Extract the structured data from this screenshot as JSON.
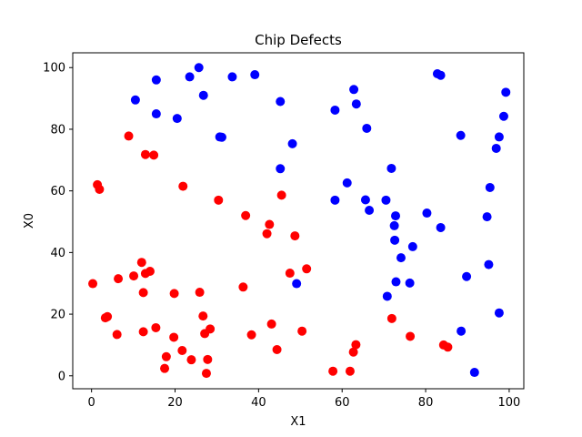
{
  "chart_data": {
    "type": "scatter",
    "title": "Chip Defects",
    "xlabel": "X1",
    "ylabel": "X0",
    "xlim": [
      -4.5,
      103.5
    ],
    "ylim": [
      -4.2,
      104.8
    ],
    "xticks": [
      0,
      20,
      40,
      60,
      80,
      100
    ],
    "yticks": [
      0,
      20,
      40,
      60,
      80,
      100
    ],
    "grid": false,
    "series": [
      {
        "color": "#0000ff",
        "points": [
          [
            10.5,
            89.5
          ],
          [
            15.5,
            96
          ],
          [
            15.5,
            85
          ],
          [
            20.5,
            83.5
          ],
          [
            23.5,
            97
          ],
          [
            25.7,
            100
          ],
          [
            26.8,
            91
          ],
          [
            30.7,
            77.5
          ],
          [
            31.2,
            77.4
          ],
          [
            33.7,
            97
          ],
          [
            39.1,
            97.7
          ],
          [
            45.2,
            89
          ],
          [
            48.1,
            75.3
          ],
          [
            45.2,
            67.2
          ],
          [
            49.1,
            29.9
          ],
          [
            58.3,
            86.2
          ],
          [
            58.3,
            57
          ],
          [
            61.2,
            62.6
          ],
          [
            62.8,
            92.9
          ],
          [
            63.4,
            88.2
          ],
          [
            65.6,
            57.1
          ],
          [
            65.9,
            80.3
          ],
          [
            66.5,
            53.7
          ],
          [
            70.5,
            57
          ],
          [
            71.8,
            67.3
          ],
          [
            72.5,
            48.7
          ],
          [
            72.6,
            44
          ],
          [
            72.8,
            51.9
          ],
          [
            72.9,
            30.5
          ],
          [
            74.1,
            38.3
          ],
          [
            76.2,
            30.1
          ],
          [
            76.9,
            41.9
          ],
          [
            70.8,
            25.8
          ],
          [
            80.3,
            52.8
          ],
          [
            82.8,
            98
          ],
          [
            83.6,
            97.5
          ],
          [
            83.6,
            48.1
          ],
          [
            88.4,
            78
          ],
          [
            88.5,
            14.5
          ],
          [
            89.8,
            32.2
          ],
          [
            91.7,
            1.1
          ],
          [
            94.7,
            51.6
          ],
          [
            95.1,
            36.1
          ],
          [
            95.4,
            61.1
          ],
          [
            96.9,
            73.8
          ],
          [
            97.6,
            77.5
          ],
          [
            97.6,
            20.4
          ],
          [
            98.7,
            84.2
          ],
          [
            99.2,
            92
          ]
        ]
      },
      {
        "color": "#ff0000",
        "points": [
          [
            0.3,
            29.9
          ],
          [
            1.4,
            62
          ],
          [
            1.9,
            60.5
          ],
          [
            3.3,
            18.8
          ],
          [
            3.8,
            19.2
          ],
          [
            6.1,
            13.4
          ],
          [
            6.4,
            31.5
          ],
          [
            8.9,
            77.8
          ],
          [
            10.1,
            32.4
          ],
          [
            12.0,
            36.8
          ],
          [
            12.4,
            27
          ],
          [
            12.4,
            14.3
          ],
          [
            12.9,
            71.8
          ],
          [
            12.9,
            33.2
          ],
          [
            14.0,
            33.9
          ],
          [
            14.9,
            71.6
          ],
          [
            15.4,
            15.6
          ],
          [
            17.5,
            2.4
          ],
          [
            17.9,
            6.2
          ],
          [
            19.7,
            12.5
          ],
          [
            19.8,
            26.7
          ],
          [
            21.7,
            8.2
          ],
          [
            21.9,
            61.5
          ],
          [
            23.9,
            5.2
          ],
          [
            25.9,
            27.1
          ],
          [
            26.7,
            19.4
          ],
          [
            27.1,
            13.7
          ],
          [
            27.5,
            0.8
          ],
          [
            27.8,
            5.3
          ],
          [
            28.4,
            15.2
          ],
          [
            30.4,
            57
          ],
          [
            36.3,
            28.8
          ],
          [
            36.9,
            52
          ],
          [
            38.3,
            13.3
          ],
          [
            42.0,
            46.1
          ],
          [
            42.6,
            49.1
          ],
          [
            43.1,
            16.8
          ],
          [
            44.4,
            8.5
          ],
          [
            45.5,
            58.6
          ],
          [
            47.5,
            33.3
          ],
          [
            48.7,
            45.4
          ],
          [
            50.4,
            14.5
          ],
          [
            51.5,
            34.7
          ],
          [
            57.8,
            1.5
          ],
          [
            61.9,
            1.5
          ],
          [
            62.7,
            7.7
          ],
          [
            63.3,
            10.1
          ],
          [
            71.9,
            18.6
          ],
          [
            76.3,
            12.8
          ],
          [
            84.3,
            10
          ],
          [
            85.3,
            9.3
          ]
        ]
      }
    ]
  }
}
